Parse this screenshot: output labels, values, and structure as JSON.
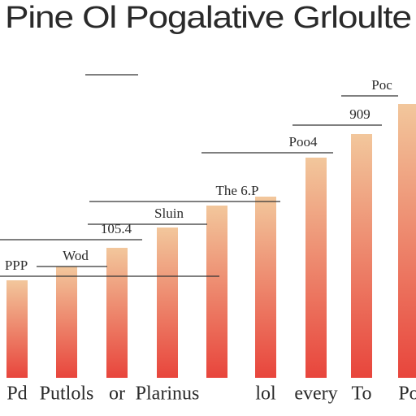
{
  "chart_data": {
    "type": "bar",
    "title": "Pine Ol Pogalative Grloulte",
    "categories": [
      "Pd",
      "Putlols",
      "or",
      "Plarinus",
      null,
      "lol",
      "every",
      "To",
      "Po"
    ],
    "values": [
      120,
      137,
      160,
      185,
      212,
      223,
      271,
      300,
      337
    ],
    "annotations": [
      "PPP",
      "Wod",
      "105.4",
      "Sluin",
      "The 6.P",
      "Poo4",
      "909",
      "Poc"
    ],
    "color": "#e8453c"
  }
}
